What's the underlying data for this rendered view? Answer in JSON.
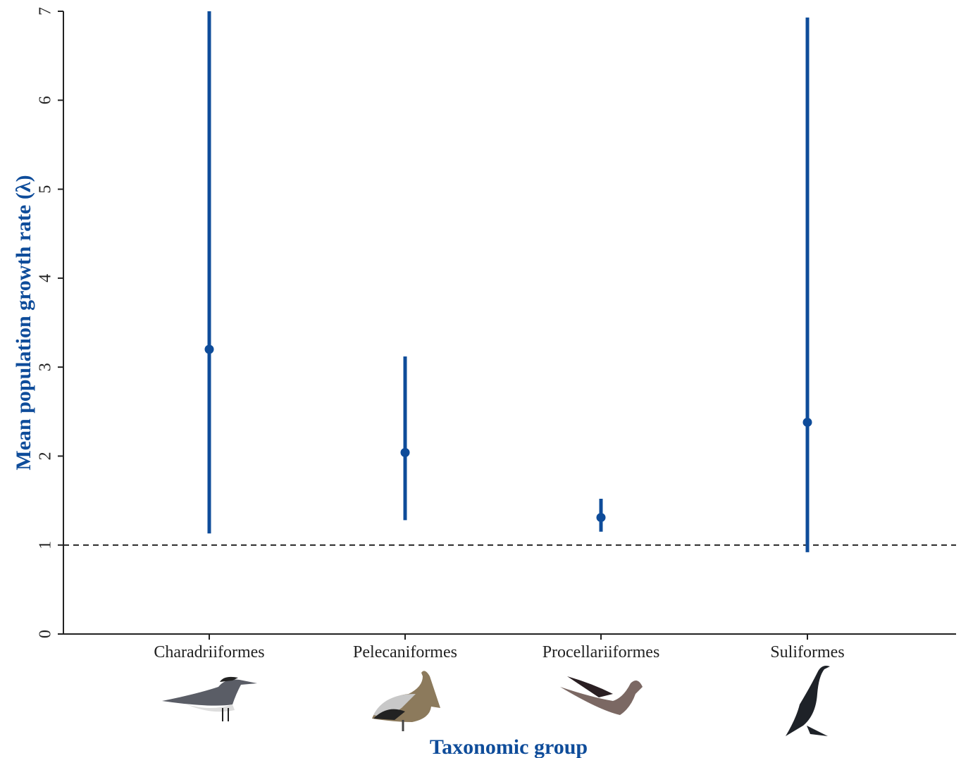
{
  "chart_data": {
    "type": "interval",
    "y_label": "Mean population growth rate (λ)",
    "x_label": "Taxonomic group",
    "categories": [
      "Charadriiformes",
      "Pelecaniformes",
      "Procellariiformes",
      "Suliformes"
    ],
    "values": [
      3.2,
      2.04,
      1.31,
      2.38
    ],
    "low": [
      1.13,
      1.28,
      1.15,
      0.92
    ],
    "high": [
      7.0,
      3.12,
      1.52,
      6.93
    ],
    "color": "#0e4c9a",
    "ylim": [
      0,
      7
    ],
    "yticks": [
      0,
      1,
      2,
      3,
      4,
      5,
      6,
      7
    ],
    "hline": 1
  }
}
